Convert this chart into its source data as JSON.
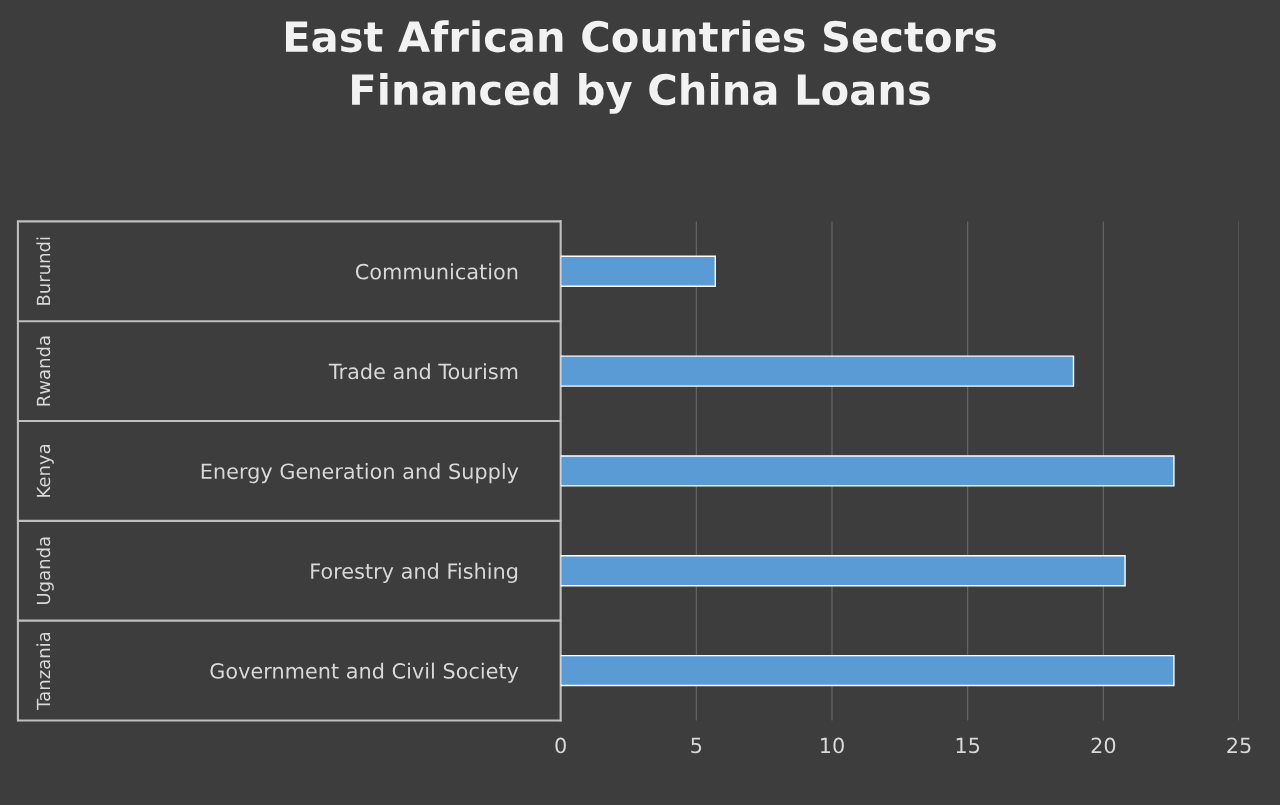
{
  "chart_data": {
    "type": "bar",
    "orientation": "horizontal",
    "title": "East African Countries Sectors\nFinanced by China Loans",
    "categories": [
      "Communication",
      "Trade and Tourism",
      "Energy Generation and Supply",
      "Forestry and Fishing",
      "Government and Civil Society"
    ],
    "values": [
      5.7,
      18.9,
      22.6,
      20.8,
      22.6
    ],
    "color": "#5b9bd5",
    "annotations": [
      "Burundi",
      "Rwanda",
      "Kenya",
      "Uganda",
      "Tanzania"
    ],
    "xlim": [
      0,
      25
    ],
    "xticks": [
      0,
      5,
      10,
      15,
      20,
      25
    ],
    "grid": "x",
    "legend": false
  }
}
